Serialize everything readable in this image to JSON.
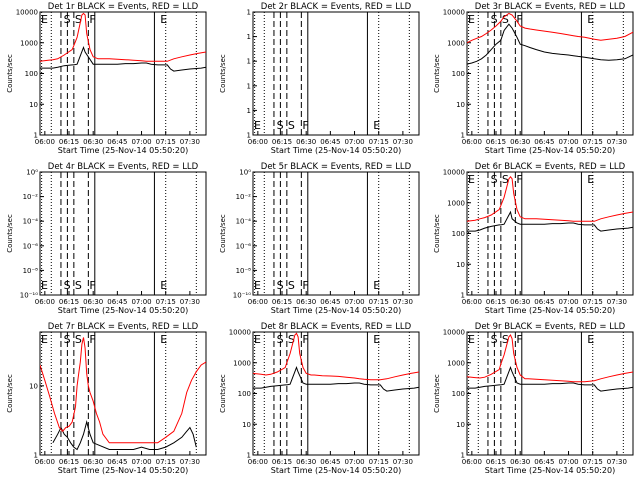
{
  "chart_data": [
    {
      "type": "line",
      "title": "Det 1r BLACK = Events, RED = LLD",
      "ylabel": "Counts/sec",
      "xlabel": "Start Time (25-Nov-14 05:50:20)",
      "x_ticks": [
        "06:00",
        "06:15",
        "06:30",
        "06:45",
        "07:00",
        "07:15",
        "07:30"
      ],
      "y_ticks": [
        "1",
        "10",
        "100",
        "1000",
        "10000"
      ],
      "ylim": [
        1,
        10000
      ],
      "yscale": "log",
      "markers": [
        "E",
        "S",
        "S",
        "F",
        "E"
      ],
      "has_data": true,
      "series": [
        {
          "name": "BLACK",
          "color": "#000000",
          "x": [
            -3,
            2,
            5,
            8,
            12,
            17,
            18,
            20,
            24,
            25,
            30,
            33,
            35,
            40,
            45,
            50,
            55,
            60,
            63,
            66,
            70,
            73,
            76,
            78,
            80,
            85,
            90,
            97,
            100
          ],
          "y": [
            150,
            150,
            150,
            160,
            180,
            190,
            190,
            200,
            700,
            500,
            200,
            200,
            200,
            200,
            200,
            210,
            210,
            220,
            220,
            200,
            190,
            190,
            190,
            140,
            120,
            130,
            140,
            150,
            160
          ]
        },
        {
          "name": "RED",
          "color": "#ff0000",
          "x": [
            -3,
            2,
            5,
            8,
            12,
            17,
            18,
            20,
            23,
            24,
            25,
            26,
            28,
            30,
            33,
            35,
            40,
            45,
            50,
            55,
            60,
            63,
            66,
            70,
            73,
            76,
            80,
            85,
            90,
            95,
            100
          ],
          "y": [
            250,
            270,
            280,
            300,
            400,
            600,
            800,
            1500,
            8000,
            9000,
            8000,
            2000,
            600,
            350,
            300,
            300,
            300,
            290,
            280,
            270,
            260,
            250,
            250,
            250,
            250,
            250,
            300,
            350,
            400,
            450,
            500
          ]
        }
      ]
    },
    {
      "type": "line",
      "title": "Det 2r BLACK = Events, RED = LLD",
      "ylabel": "Counts/sec",
      "xlabel": "Start Time (25-Nov-14 05:50:20)",
      "x_ticks": [
        "06:00",
        "06:15",
        "06:30",
        "06:45",
        "07:00",
        "07:15",
        "07:30"
      ],
      "y_ticks": [
        "1",
        "1",
        "1",
        "1",
        "1",
        "1"
      ],
      "markers": [
        "E",
        "S",
        "S",
        "F",
        "E"
      ],
      "has_data": false,
      "series": []
    },
    {
      "type": "line",
      "title": "Det 3r BLACK = Events, RED = LLD",
      "ylabel": "Counts/sec",
      "xlabel": "Start Time (25-Nov-14 05:50:20)",
      "x_ticks": [
        "06:00",
        "06:15",
        "06:30",
        "06:45",
        "07:00",
        "07:15",
        "07:30"
      ],
      "y_ticks": [
        "1",
        "10",
        "100",
        "1000",
        "10000"
      ],
      "ylim": [
        1,
        10000
      ],
      "yscale": "log",
      "markers": [
        "E",
        "S",
        "S",
        "F",
        "E"
      ],
      "has_data": true,
      "series": [
        {
          "name": "BLACK",
          "color": "#000000",
          "x": [
            -3,
            0,
            3,
            6,
            9,
            12,
            15,
            18,
            20,
            23,
            25,
            28,
            30,
            33,
            36,
            40,
            45,
            50,
            55,
            60,
            63,
            66,
            70,
            73,
            76,
            80,
            85,
            90,
            95,
            100
          ],
          "y": [
            200,
            220,
            250,
            300,
            400,
            600,
            900,
            1200,
            2500,
            4000,
            3000,
            1500,
            900,
            800,
            700,
            600,
            500,
            450,
            420,
            400,
            380,
            360,
            340,
            320,
            300,
            280,
            270,
            280,
            300,
            400
          ]
        },
        {
          "name": "RED",
          "color": "#ff0000",
          "x": [
            -3,
            0,
            3,
            6,
            9,
            12,
            15,
            18,
            20,
            23,
            25,
            28,
            30,
            33,
            36,
            40,
            45,
            50,
            55,
            60,
            63,
            66,
            70,
            73,
            76,
            80,
            85,
            90,
            95,
            100
          ],
          "y": [
            1000,
            1200,
            1400,
            1600,
            2000,
            2600,
            3500,
            5000,
            7000,
            9000,
            8000,
            5000,
            3500,
            3000,
            2800,
            2600,
            2400,
            2200,
            2000,
            1800,
            1700,
            1600,
            1500,
            1400,
            1300,
            1200,
            1300,
            1400,
            1600,
            2200
          ]
        }
      ]
    },
    {
      "type": "line",
      "title": "Det 4r BLACK = Events, RED = LLD",
      "ylabel": "Counts/sec",
      "xlabel": "Start Time (25-Nov-14 05:50:20)",
      "x_ticks": [
        "06:00",
        "06:15",
        "06:30",
        "06:45",
        "07:00",
        "07:15",
        "07:30"
      ],
      "y_ticks": [
        "10⁻¹⁰",
        "10⁻⁸",
        "10⁻⁶",
        "10⁻⁴",
        "10⁻²",
        "10⁰"
      ],
      "markers": [
        "E",
        "S",
        "S",
        "F",
        "E"
      ],
      "has_data": false,
      "series": []
    },
    {
      "type": "line",
      "title": "Det 5r BLACK = Events, RED = LLD",
      "ylabel": "Counts/sec",
      "xlabel": "Start Time (25-Nov-14 05:50:20)",
      "x_ticks": [
        "06:00",
        "06:15",
        "06:30",
        "06:45",
        "07:00",
        "07:15",
        "07:30"
      ],
      "y_ticks": [
        "10⁻¹⁰",
        "10⁻⁸",
        "10⁻⁶",
        "10⁻⁴",
        "10⁻²",
        "10⁰"
      ],
      "markers": [
        "E",
        "S",
        "S",
        "F",
        "E"
      ],
      "has_data": false,
      "series": []
    },
    {
      "type": "line",
      "title": "Det 6r BLACK = Events, RED = LLD",
      "ylabel": "Counts/sec",
      "xlabel": "Start Time (25-Nov-14 05:50:20)",
      "x_ticks": [
        "06:00",
        "06:15",
        "06:30",
        "06:45",
        "07:00",
        "07:15",
        "07:30"
      ],
      "y_ticks": [
        "1",
        "10",
        "100",
        "1000",
        "10000"
      ],
      "ylim": [
        1,
        10000
      ],
      "yscale": "log",
      "markers": [
        "E",
        "S",
        "S",
        "F",
        "E"
      ],
      "has_data": true,
      "series": [
        {
          "name": "BLACK",
          "color": "#000000",
          "x": [
            -3,
            2,
            5,
            8,
            12,
            17,
            18,
            20,
            24,
            25,
            28,
            30,
            33,
            35,
            40,
            45,
            50,
            55,
            60,
            63,
            66,
            70,
            73,
            76,
            78,
            80,
            85,
            90,
            97,
            100
          ],
          "y": [
            120,
            120,
            130,
            150,
            170,
            190,
            190,
            200,
            500,
            300,
            220,
            200,
            200,
            200,
            200,
            200,
            210,
            210,
            220,
            220,
            200,
            190,
            190,
            190,
            140,
            120,
            130,
            140,
            150,
            160
          ]
        },
        {
          "name": "RED",
          "color": "#ff0000",
          "x": [
            -3,
            2,
            5,
            8,
            12,
            17,
            18,
            20,
            23,
            24,
            25,
            26,
            28,
            30,
            33,
            35,
            40,
            45,
            50,
            55,
            60,
            63,
            66,
            70,
            73,
            76,
            80,
            85,
            90,
            95,
            100
          ],
          "y": [
            250,
            270,
            300,
            330,
            400,
            600,
            800,
            1500,
            6000,
            7000,
            6000,
            2000,
            600,
            350,
            300,
            300,
            300,
            290,
            280,
            270,
            260,
            250,
            250,
            250,
            250,
            250,
            300,
            350,
            400,
            450,
            500
          ]
        }
      ]
    },
    {
      "type": "line",
      "title": "Det 7r BLACK = Events, RED = LLD",
      "ylabel": "Counts/sec",
      "xlabel": "Start Time (25-Nov-14 05:50:20)",
      "x_ticks": [
        "06:00",
        "06:15",
        "06:30",
        "06:45",
        "07:00",
        "07:15",
        "07:30"
      ],
      "y_ticks": [
        "1",
        "10"
      ],
      "ylim": [
        1,
        60
      ],
      "yscale": "log",
      "markers": [
        "E",
        "S",
        "S",
        "F",
        "E"
      ],
      "has_data": true,
      "series": [
        {
          "name": "BLACK",
          "color": "#000000",
          "x": [
            5,
            8,
            10,
            12,
            14,
            16,
            18,
            20,
            22,
            24,
            26,
            28,
            30,
            40,
            50,
            55,
            60,
            65,
            70,
            75,
            80,
            85,
            88,
            90,
            92,
            94
          ],
          "y": [
            1.5,
            2,
            2.5,
            2,
            1.8,
            1.5,
            1.3,
            1.2,
            1.5,
            2,
            3,
            2,
            1.5,
            1.2,
            1.2,
            1.2,
            1.3,
            1.2,
            1.2,
            1.3,
            1.5,
            1.8,
            2.2,
            2.5,
            2.0,
            1.3
          ]
        },
        {
          "name": "RED",
          "color": "#ff0000",
          "x": [
            -3,
            0,
            3,
            6,
            9,
            11,
            13,
            15,
            17,
            19,
            20,
            21,
            22,
            23,
            24,
            25,
            26,
            27,
            28,
            30,
            32,
            34,
            36,
            40,
            45,
            50,
            55,
            60,
            65,
            70,
            75,
            80,
            85,
            88,
            91,
            94,
            97,
            100
          ],
          "y": [
            20,
            12,
            7,
            4,
            2.5,
            2.2,
            2.5,
            2.6,
            3,
            5,
            10,
            15,
            22,
            40,
            50,
            35,
            15,
            10,
            8,
            6,
            4,
            3,
            2,
            1.5,
            1.5,
            1.5,
            1.5,
            1.5,
            1.5,
            1.5,
            1.8,
            2.2,
            4,
            8,
            12,
            16,
            20,
            22
          ]
        }
      ]
    },
    {
      "type": "line",
      "title": "Det 8r BLACK = Events, RED = LLD",
      "ylabel": "Counts/sec",
      "xlabel": "Start Time (25-Nov-14 05:50:20)",
      "x_ticks": [
        "06:00",
        "06:15",
        "06:30",
        "06:45",
        "07:00",
        "07:15",
        "07:30"
      ],
      "y_ticks": [
        "1",
        "10",
        "100",
        "1000",
        "10000"
      ],
      "ylim": [
        1,
        10000
      ],
      "yscale": "log",
      "markers": [
        "E",
        "S",
        "S",
        "F",
        "E"
      ],
      "has_data": true,
      "series": [
        {
          "name": "BLACK",
          "color": "#000000",
          "x": [
            -3,
            2,
            5,
            8,
            12,
            17,
            18,
            20,
            24,
            25,
            28,
            30,
            33,
            35,
            40,
            45,
            50,
            55,
            60,
            63,
            66,
            70,
            73,
            76,
            78,
            80,
            85,
            90,
            97,
            100
          ],
          "y": [
            150,
            150,
            160,
            170,
            180,
            190,
            190,
            200,
            700,
            500,
            220,
            200,
            200,
            200,
            200,
            200,
            210,
            210,
            220,
            220,
            200,
            190,
            190,
            190,
            140,
            120,
            130,
            140,
            150,
            160
          ]
        },
        {
          "name": "RED",
          "color": "#ff0000",
          "x": [
            -3,
            2,
            5,
            8,
            12,
            17,
            18,
            20,
            23,
            24,
            25,
            26,
            28,
            30,
            33,
            35,
            40,
            45,
            50,
            55,
            60,
            63,
            66,
            70,
            73,
            76,
            80,
            85,
            90,
            95,
            100
          ],
          "y": [
            450,
            420,
            400,
            420,
            500,
            700,
            1000,
            2000,
            8000,
            9000,
            7000,
            2000,
            700,
            450,
            400,
            400,
            380,
            370,
            360,
            340,
            320,
            300,
            290,
            280,
            280,
            280,
            300,
            350,
            400,
            450,
            500
          ]
        }
      ]
    },
    {
      "type": "line",
      "title": "Det 9r BLACK = Events, RED = LLD",
      "ylabel": "Counts/sec",
      "xlabel": "Start Time (25-Nov-14 05:50:20)",
      "x_ticks": [
        "06:00",
        "06:15",
        "06:30",
        "06:45",
        "07:00",
        "07:15",
        "07:30"
      ],
      "y_ticks": [
        "1",
        "10",
        "100",
        "1000",
        "10000"
      ],
      "ylim": [
        1,
        10000
      ],
      "yscale": "log",
      "markers": [
        "E",
        "S",
        "S",
        "F",
        "E"
      ],
      "has_data": true,
      "series": [
        {
          "name": "BLACK",
          "color": "#000000",
          "x": [
            -3,
            2,
            5,
            8,
            12,
            17,
            18,
            20,
            24,
            25,
            28,
            30,
            33,
            35,
            40,
            45,
            50,
            55,
            60,
            63,
            66,
            70,
            73,
            76,
            78,
            80,
            85,
            90,
            97,
            100
          ],
          "y": [
            150,
            150,
            160,
            170,
            180,
            190,
            190,
            200,
            700,
            500,
            220,
            200,
            200,
            200,
            200,
            200,
            210,
            210,
            220,
            220,
            200,
            190,
            190,
            190,
            140,
            120,
            130,
            140,
            150,
            160
          ]
        },
        {
          "name": "RED",
          "color": "#ff0000",
          "x": [
            -3,
            2,
            5,
            8,
            12,
            17,
            18,
            20,
            23,
            24,
            25,
            26,
            28,
            30,
            33,
            35,
            40,
            45,
            50,
            55,
            60,
            63,
            66,
            70,
            73,
            76,
            80,
            85,
            90,
            95,
            100
          ],
          "y": [
            350,
            330,
            320,
            340,
            420,
            600,
            900,
            1800,
            7000,
            8000,
            6000,
            2000,
            700,
            400,
            300,
            300,
            290,
            280,
            270,
            260,
            250,
            240,
            240,
            240,
            250,
            260,
            300,
            350,
            400,
            450,
            500
          ]
        }
      ]
    }
  ]
}
